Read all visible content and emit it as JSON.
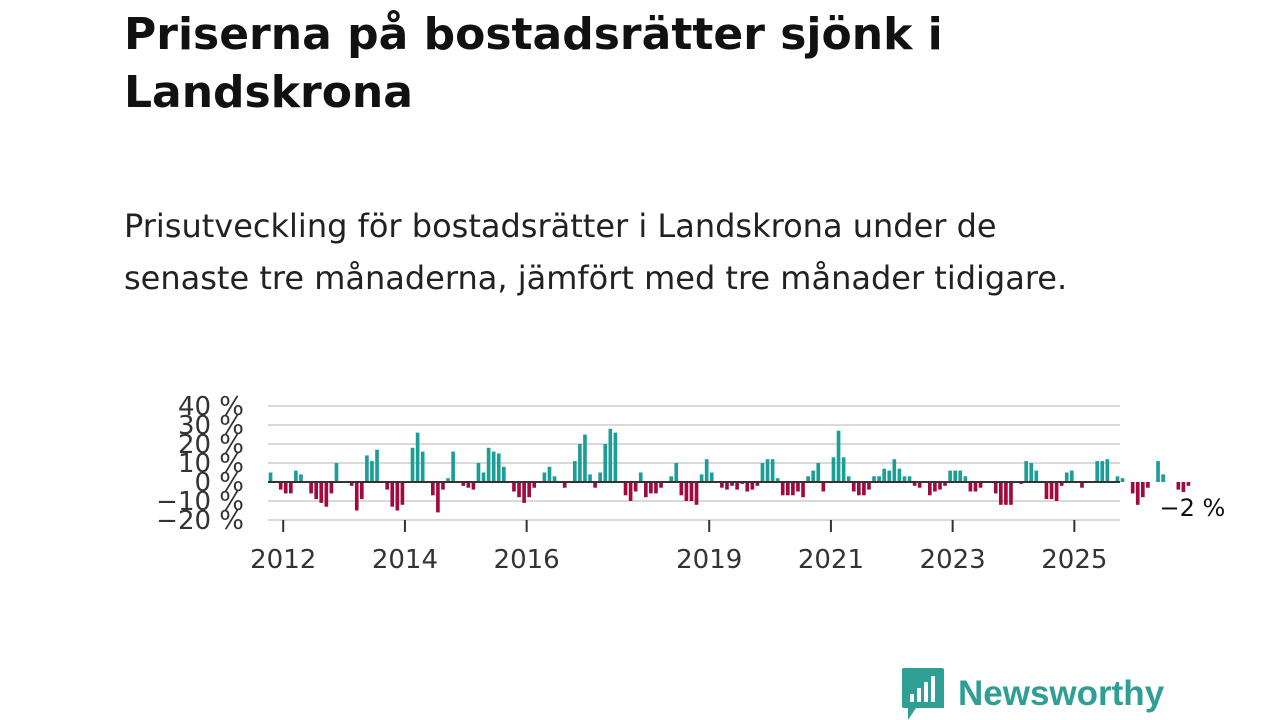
{
  "header": {
    "title": "Priserna på bostadsrätter sjönk i Landskrona",
    "subtitle": "Prisutveckling för bostadsrätter i Landskrona under de senaste tre månaderna, jämfört med tre månader tidigare."
  },
  "chart_data": {
    "type": "bar",
    "title": "",
    "xlabel": "",
    "ylabel": "",
    "ylim": [
      -20,
      40
    ],
    "yticks": [
      -20,
      -10,
      0,
      10,
      20,
      30,
      40
    ],
    "ytick_labels": [
      "−20 %",
      "−10 %",
      "0 %",
      "10 %",
      "20 %",
      "30 %",
      "40 %"
    ],
    "grid": true,
    "x_start": "2011-10",
    "x_end": "2025-10",
    "xticks": [
      {
        "label": "2012",
        "t": 2012.0
      },
      {
        "label": "2014",
        "t": 2014.0
      },
      {
        "label": "2016",
        "t": 2016.0
      },
      {
        "label": "2019",
        "t": 2019.0
      },
      {
        "label": "2021",
        "t": 2021.0
      },
      {
        "label": "2023",
        "t": 2023.0
      },
      {
        "label": "2025",
        "t": 2025.0
      }
    ],
    "colors": {
      "positive": "#1a9e97",
      "negative": "#a3093d",
      "zero_line": "#333333",
      "grid": "#d9d9d9"
    },
    "annotation": {
      "label": "−2 %",
      "value": -2
    },
    "values": [
      5,
      0,
      -4,
      -6,
      -6,
      6,
      4,
      0,
      -6,
      -9,
      -11,
      -13,
      -6,
      10,
      0,
      0,
      -2,
      -15,
      -9,
      14,
      11,
      17,
      0,
      -4,
      -13,
      -15,
      -12,
      0,
      18,
      26,
      16,
      0,
      -7,
      -16,
      -4,
      2,
      16,
      0,
      -2,
      -3,
      -4,
      10,
      5,
      18,
      16,
      15,
      8,
      0,
      -5,
      -8,
      -11,
      -8,
      -3,
      0,
      5,
      8,
      3,
      0,
      -3,
      0,
      11,
      20,
      25,
      4,
      -3,
      5,
      20,
      28,
      26,
      0,
      -7,
      -10,
      -5,
      5,
      -8,
      -6,
      -6,
      -3,
      0,
      3,
      10,
      -7,
      -10,
      -10,
      -12,
      4,
      12,
      5,
      0,
      -3,
      -4,
      -2,
      -4,
      -1,
      -5,
      -4,
      -2,
      10,
      12,
      12,
      2,
      -7,
      -7,
      -7,
      -5,
      -8,
      3,
      6,
      10,
      -5,
      0,
      13,
      27,
      13,
      3,
      -5,
      -7,
      -7,
      -4,
      3,
      3,
      7,
      6,
      12,
      7,
      3,
      3,
      -2,
      -3,
      0,
      -7,
      -5,
      -4,
      -2,
      6,
      6,
      6,
      3,
      -5,
      -5,
      -3,
      0,
      0,
      -6,
      -12,
      -12,
      -12,
      0,
      -1,
      11,
      10,
      6,
      0,
      -9,
      -9,
      -10,
      -2,
      5,
      6,
      0,
      -3,
      0,
      0,
      11,
      11,
      12,
      0,
      3,
      2,
      0,
      -6,
      -12,
      -8,
      -3,
      0,
      11,
      4,
      0,
      0,
      -4,
      -7,
      -2
    ]
  },
  "footer": {
    "brand": "Newsworthy"
  }
}
